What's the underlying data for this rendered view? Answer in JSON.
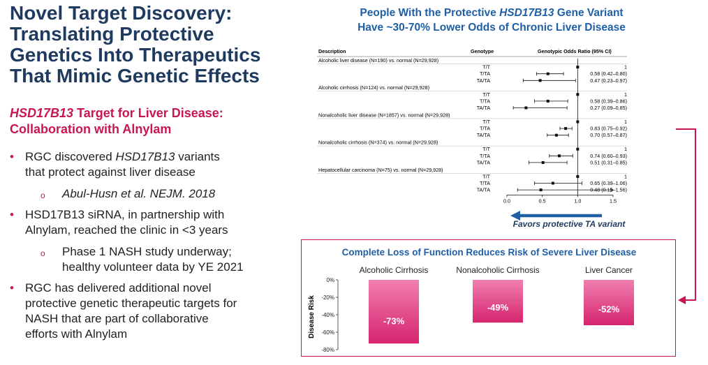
{
  "slide": {
    "title": "Novel Target Discovery: Translating Protective Genetics Into Therapeutics That Mimic Genetic Effects",
    "subtitle_italic": "HSD17B13",
    "subtitle_rest": " Target for Liver Disease:",
    "subtitle_line2": "Collaboration with Alnylam",
    "bullets": [
      {
        "level": 1,
        "pre": "RGC discovered ",
        "ital": "HSD17B13",
        "post": " variants"
      },
      {
        "level": 1,
        "text": "that protect against liver disease",
        "cont": true
      },
      {
        "level": 2,
        "text": "Abul-Husn et al. NEJM. 2018",
        "italic": true
      },
      {
        "level": 1,
        "text": "HSD17B13 siRNA, in partnership with"
      },
      {
        "level": 1,
        "text": "Alnylam, reached the clinic in <3 years",
        "cont": true
      },
      {
        "level": 2,
        "text": "Phase 1 NASH study underway;"
      },
      {
        "level": 2,
        "text": "healthy volunteer data by YE 2021",
        "cont": true
      },
      {
        "level": 1,
        "text": "RGC has delivered additional novel"
      },
      {
        "level": 1,
        "text": "protective genetic therapeutic targets for",
        "cont": true
      },
      {
        "level": 1,
        "text": "NASH that are part of collaborative",
        "cont": true
      },
      {
        "level": 1,
        "text": "efforts with Alnylam",
        "cont": true
      }
    ],
    "bullet_glyph": "•",
    "sub_glyph": "o"
  },
  "forest": {
    "title_pre": "People With the Protective ",
    "title_ital": "HSD17B13",
    "title_post": " Gene Variant",
    "title_line2": "Have ~30-70% Lower Odds of Chronic Liver Disease",
    "favors_text": "Favors protective TA variant",
    "arrow_color": "#1f5fa6",
    "chart_data": {
      "type": "forest",
      "col_headers": [
        "Description",
        "Genotype",
        "Genotypic Odds Ratio (95% CI)"
      ],
      "xlim": [
        0.0,
        1.5
      ],
      "xticks": [
        "0.0",
        "0.5",
        "1.0",
        "1.5"
      ],
      "reference_line": 1.0,
      "groups": [
        {
          "label": "Alcoholic liver disease (N=190) vs. normal (N=29,928)",
          "rows": [
            {
              "genotype": "T/T",
              "or": 1.0,
              "lo": 1.0,
              "hi": 1.0,
              "text": "1"
            },
            {
              "genotype": "T/TA",
              "or": 0.58,
              "lo": 0.42,
              "hi": 0.8,
              "text": "0.58 (0.42–0.80)"
            },
            {
              "genotype": "TA/TA",
              "or": 0.47,
              "lo": 0.23,
              "hi": 0.97,
              "text": "0.47 (0.23–0.97)"
            }
          ]
        },
        {
          "label": "Alcoholic cirrhosis (N=124) vs. normal (N=29,928)",
          "rows": [
            {
              "genotype": "T/T",
              "or": 1.0,
              "lo": 1.0,
              "hi": 1.0,
              "text": "1"
            },
            {
              "genotype": "T/TA",
              "or": 0.58,
              "lo": 0.39,
              "hi": 0.86,
              "text": "0.58 (0.39–0.86)"
            },
            {
              "genotype": "TA/TA",
              "or": 0.27,
              "lo": 0.09,
              "hi": 0.85,
              "text": "0.27 (0.09–0.85)"
            }
          ]
        },
        {
          "label": "Nonalcoholic liver disease (N=1857) vs. normal (N=29,928)",
          "rows": [
            {
              "genotype": "T/T",
              "or": 1.0,
              "lo": 1.0,
              "hi": 1.0,
              "text": "1"
            },
            {
              "genotype": "T/TA",
              "or": 0.83,
              "lo": 0.75,
              "hi": 0.92,
              "text": "0.83 (0.75–0.92)"
            },
            {
              "genotype": "TA/TA",
              "or": 0.7,
              "lo": 0.57,
              "hi": 0.87,
              "text": "0.70 (0.57–0.87)"
            }
          ]
        },
        {
          "label": "Nonalcoholic cirrhosis (N=374) vs. normal (N=29,928)",
          "rows": [
            {
              "genotype": "T/T",
              "or": 1.0,
              "lo": 1.0,
              "hi": 1.0,
              "text": "1"
            },
            {
              "genotype": "T/TA",
              "or": 0.74,
              "lo": 0.6,
              "hi": 0.93,
              "text": "0.74 (0.60–0.93)"
            },
            {
              "genotype": "TA/TA",
              "or": 0.51,
              "lo": 0.31,
              "hi": 0.85,
              "text": "0.51 (0.31–0.85)"
            }
          ]
        },
        {
          "label": "Hepatocellular carcinoma (N=75) vs. normal (N=29,928)",
          "rows": [
            {
              "genotype": "T/T",
              "or": 1.0,
              "lo": 1.0,
              "hi": 1.0,
              "text": "1"
            },
            {
              "genotype": "T/TA",
              "or": 0.65,
              "lo": 0.39,
              "hi": 1.06,
              "text": "0.65 (0.39–1.06)"
            },
            {
              "genotype": "TA/TA",
              "or": 0.48,
              "lo": 0.15,
              "hi": 1.56,
              "text": "0.48 (0.15–1.56)"
            }
          ]
        }
      ]
    }
  },
  "bars": {
    "title": "Complete Loss of Function Reduces Risk of Severe Liver Disease",
    "chart_data": {
      "type": "bar",
      "categories": [
        "Alcoholic Cirrhosis",
        "Nonalcoholic Cirrhosis",
        "Liver Cancer"
      ],
      "values": [
        -73,
        -49,
        -52
      ],
      "value_labels": [
        "-73%",
        "-49%",
        "-52%"
      ],
      "ylabel": "Disease Risk",
      "ylim": [
        -80,
        0
      ],
      "yticks": [
        "0%",
        "-20%",
        "-40%",
        "-60%",
        "-80%"
      ],
      "bar_color_top": "#f07fb0",
      "bar_color_bottom": "#d6246e"
    }
  },
  "connector_color": "#c8174f"
}
